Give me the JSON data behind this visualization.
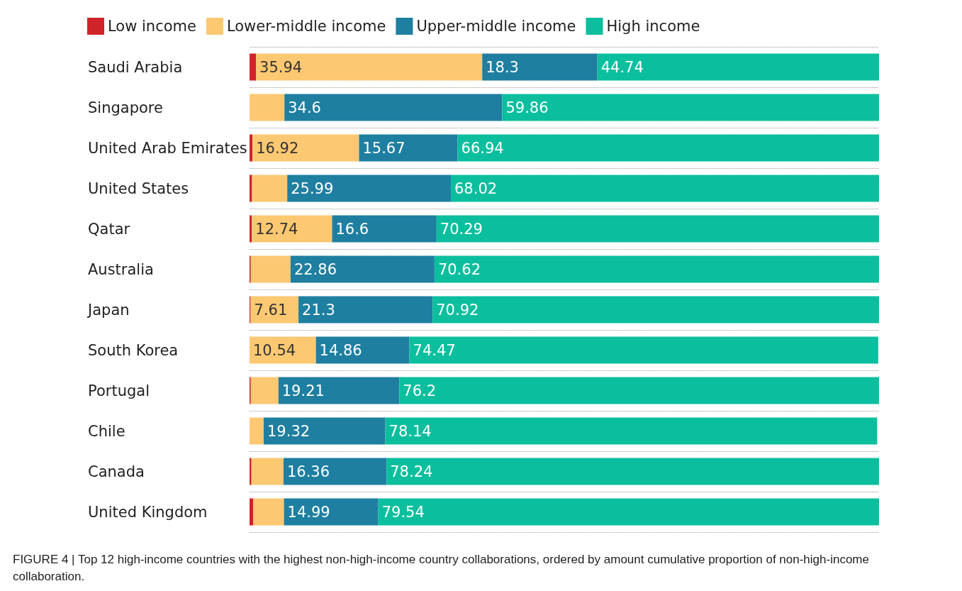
{
  "chart_data": {
    "type": "bar",
    "orientation": "horizontal",
    "stacked": true,
    "legend": "top left",
    "grid": "y",
    "categories": [
      "Saudi Arabia",
      "Singapore",
      "United Arab Emirates",
      "United States",
      "Qatar",
      "Australia",
      "Japan",
      "South Korea",
      "Portugal",
      "Chile",
      "Canada",
      "United Kingdom"
    ],
    "series": [
      {
        "name": "Low income",
        "color": "#d0232a",
        "values": [
          1.02,
          0,
          0.47,
          0.4,
          0.37,
          0.2,
          0.17,
          0,
          0.2,
          0,
          0.3,
          0.6
        ],
        "value_labels": [
          null,
          null,
          null,
          null,
          null,
          null,
          null,
          null,
          null,
          null,
          null,
          null
        ]
      },
      {
        "name": "Lower-middle income",
        "color": "#fdc872",
        "values": [
          35.94,
          5.54,
          16.92,
          5.59,
          12.74,
          6.32,
          7.61,
          10.54,
          4.39,
          2.25,
          5.1,
          4.87
        ],
        "value_labels": [
          "35.94",
          null,
          "16.92",
          null,
          "12.74",
          null,
          "7.61",
          "10.54",
          null,
          null,
          null,
          null
        ]
      },
      {
        "name": "Upper-middle income",
        "color": "#1f7fa0",
        "values": [
          18.3,
          34.6,
          15.67,
          25.99,
          16.6,
          22.86,
          21.3,
          14.86,
          19.21,
          19.32,
          16.36,
          14.99
        ],
        "value_labels": [
          "18.3",
          "34.6",
          "15.67",
          "25.99",
          "16.6",
          "22.86",
          "21.3",
          "14.86",
          "19.21",
          "19.32",
          "16.36",
          "14.99"
        ]
      },
      {
        "name": "High income",
        "color": "#0bbf9e",
        "values": [
          44.74,
          59.86,
          66.94,
          68.02,
          70.29,
          70.62,
          70.92,
          74.47,
          76.2,
          78.14,
          78.24,
          79.54
        ],
        "value_labels": [
          "44.74",
          "59.86",
          "66.94",
          "68.02",
          "70.29",
          "70.62",
          "70.92",
          "74.47",
          "76.2",
          "78.14",
          "78.24",
          "79.54"
        ]
      }
    ],
    "annotations": [
      "FIGURE 4 | Top 12 high-income countries with the highest non-high-income country collaborations, ordered by amount cumulative proportion of non-high-income collaboration."
    ]
  }
}
